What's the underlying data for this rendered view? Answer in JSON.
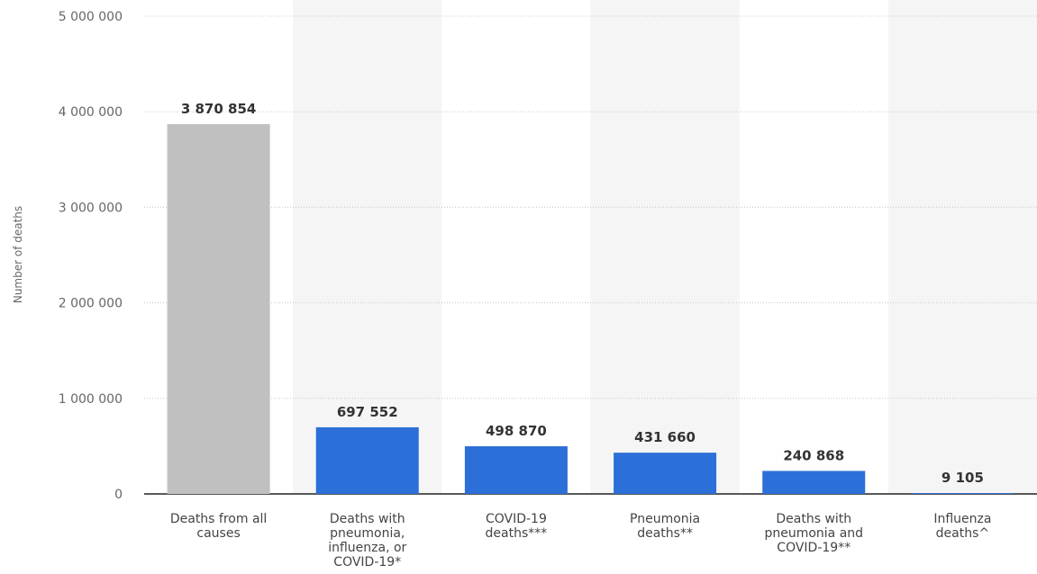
{
  "chart_data": {
    "type": "bar",
    "title": "",
    "ylabel": "Number of deaths",
    "xlabel": "",
    "ylim": [
      0,
      5000000
    ],
    "yticks": [
      0,
      1000000,
      2000000,
      3000000,
      4000000,
      5000000
    ],
    "ytick_labels": [
      "0",
      "1 000 000",
      "2 000 000",
      "3 000 000",
      "4 000 000",
      "5 000 000"
    ],
    "grid": true,
    "categories": [
      [
        "Deaths from all",
        "causes"
      ],
      [
        "Deaths with",
        "pneumonia,",
        "influenza, or",
        "COVID-19*"
      ],
      [
        "COVID-19",
        "deaths***"
      ],
      [
        "Pneumonia",
        "deaths**"
      ],
      [
        "Deaths with",
        "pneumonia and",
        "COVID-19**"
      ],
      [
        "Influenza",
        "deaths^"
      ]
    ],
    "values": [
      3870854,
      697552,
      498870,
      431660,
      240868,
      9105
    ],
    "data_labels": [
      "3 870 854",
      "697 552",
      "498 870",
      "431 660",
      "240 868",
      "9 105"
    ],
    "bar_colors": [
      "#c0c0c0",
      "#2d6fd8",
      "#2d6fd8",
      "#2d6fd8",
      "#2d6fd8",
      "#2d6fd8"
    ],
    "band_color": "#f5f5f5",
    "grid_color": "#c8c8c8",
    "axis_color": "#222222"
  }
}
